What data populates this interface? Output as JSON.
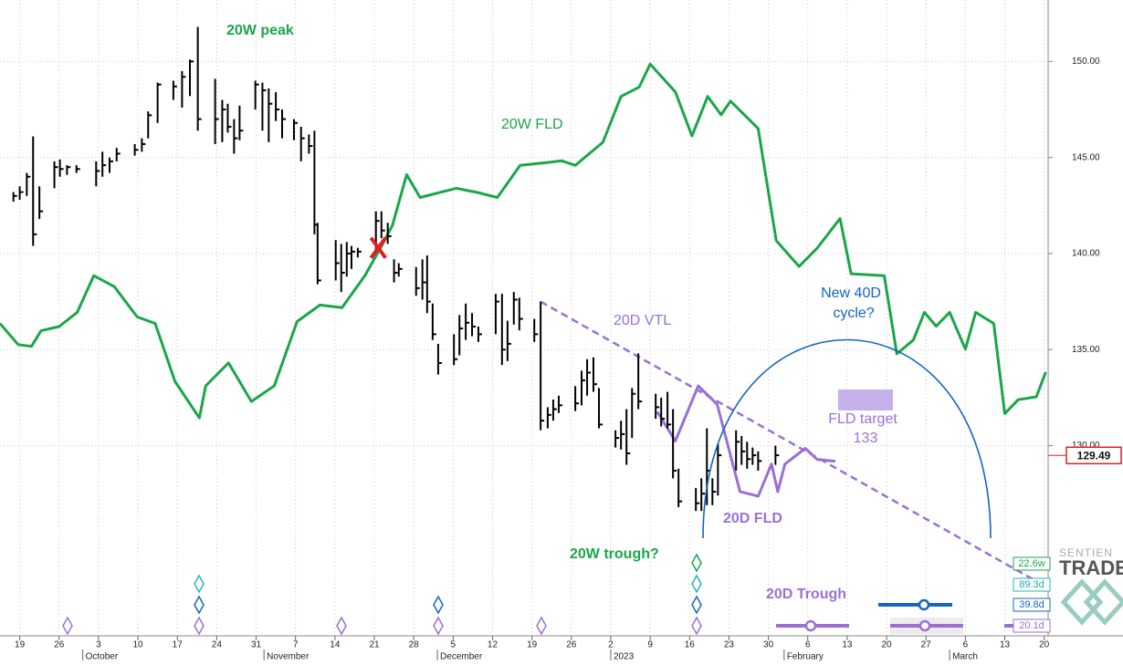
{
  "chart_data": {
    "type": "ohlc",
    "xlim": [
      -2.5,
      130.5
    ],
    "xticks": [
      {
        "value": 0,
        "label": "19"
      },
      {
        "value": 5,
        "label": "26"
      },
      {
        "value": 10,
        "label": "3"
      },
      {
        "value": 15,
        "label": "10"
      },
      {
        "value": 20,
        "label": "17"
      },
      {
        "value": 25,
        "label": "24"
      },
      {
        "value": 30,
        "label": "31"
      },
      {
        "value": 35,
        "label": "7"
      },
      {
        "value": 40,
        "label": "14"
      },
      {
        "value": 45,
        "label": "21"
      },
      {
        "value": 50,
        "label": "28"
      },
      {
        "value": 55,
        "label": "5"
      },
      {
        "value": 60,
        "label": "12"
      },
      {
        "value": 65,
        "label": "19"
      },
      {
        "value": 70,
        "label": "26"
      },
      {
        "value": 75,
        "label": "2"
      },
      {
        "value": 80,
        "label": "9"
      },
      {
        "value": 85,
        "label": "16"
      },
      {
        "value": 90,
        "label": "23"
      },
      {
        "value": 95,
        "label": "30"
      },
      {
        "value": 100,
        "label": "6"
      },
      {
        "value": 105,
        "label": "13"
      },
      {
        "value": 110,
        "label": "20"
      },
      {
        "value": 115,
        "label": "27"
      },
      {
        "value": 120,
        "label": "6"
      },
      {
        "value": 125,
        "label": "13"
      },
      {
        "value": 130,
        "label": "20"
      }
    ],
    "month_labels": [
      {
        "value": 8,
        "label": "October"
      },
      {
        "value": 31,
        "label": "November"
      },
      {
        "value": 53,
        "label": "December"
      },
      {
        "value": 75,
        "label": "2023"
      },
      {
        "value": 97,
        "label": "February"
      },
      {
        "value": 118,
        "label": "March"
      }
    ],
    "ylim": [
      120.1,
      153.2
    ],
    "yticks": [
      {
        "value": 130,
        "label": "130.00"
      },
      {
        "value": 135,
        "label": "135.00"
      },
      {
        "value": 140,
        "label": "140.00"
      },
      {
        "value": 145,
        "label": "145.00"
      },
      {
        "value": 150,
        "label": "150.00"
      }
    ],
    "grid": true,
    "bars": {
      "color": "#000000",
      "x": [
        -0.8,
        0,
        0.9,
        1.7,
        2.5,
        4.4,
        5.1,
        6,
        7.2,
        9.7,
        10.5,
        11.4,
        12.3,
        14.6,
        15.5,
        16.3,
        17.5,
        19.5,
        20.6,
        21.6,
        22.6,
        24.8,
        25.7,
        26.4,
        27.2,
        27.9,
        29.9,
        30.8,
        31.6,
        32.5,
        33.3,
        34.8,
        35.7,
        36.7,
        37.4,
        37.8,
        40.1,
        40.8,
        41.5,
        42.1,
        42.9,
        45.2,
        45.9,
        46.7,
        47.5,
        48.1,
        50.3,
        51.1,
        51.7,
        52.4,
        53.1,
        55.1,
        55.8,
        56.6,
        57.4,
        58.2,
        60.4,
        61.2,
        61.9,
        62.7,
        63.4,
        65.3,
        66.1,
        67,
        67.7,
        68.4,
        70.5,
        71.3,
        72,
        72.8,
        73.5,
        75.6,
        76.3,
        77,
        77.7,
        78.5,
        80.7,
        81.4,
        82.2,
        82.9,
        83.6,
        85.8,
        86.5,
        87.2,
        87.9,
        88.6,
        90.9,
        91.6,
        92.3,
        93,
        93.7,
        95.9
      ],
      "high": [
        143.2,
        143.5,
        144.2,
        146.1,
        143.5,
        144.8,
        144.9,
        144.6,
        144.6,
        144.8,
        145.3,
        145.0,
        145.5,
        145.7,
        146.0,
        147.4,
        148.9,
        149.0,
        149.5,
        150.1,
        151.8,
        149.1,
        148.0,
        147.8,
        147.0,
        147.7,
        149.0,
        148.9,
        148.6,
        148.4,
        147.5,
        147.0,
        146.6,
        146.2,
        146.4,
        141.6,
        140.7,
        140.5,
        140.6,
        140.4,
        140.3,
        142.2,
        142.2,
        141.6,
        139.7,
        139.5,
        139.3,
        139.7,
        139.9,
        137.4,
        135.3,
        135.8,
        136.8,
        137.4,
        136.9,
        136.2,
        137.9,
        137.9,
        136.5,
        138.0,
        137.7,
        136.6,
        137.5,
        132.0,
        132.4,
        132.6,
        133.1,
        133.9,
        134.5,
        134.6,
        133.0,
        130.8,
        131.3,
        131.9,
        133.0,
        134.8,
        132.7,
        132.5,
        132.8,
        131.9,
        128.8,
        127.8,
        128.3,
        130.9,
        128.3,
        130.1,
        130.8,
        130.5,
        130.2,
        129.9,
        129.7,
        130.0
      ],
      "low": [
        142.7,
        142.8,
        143.0,
        140.4,
        141.8,
        143.4,
        144.0,
        144.1,
        144.2,
        143.5,
        144.0,
        144.2,
        144.8,
        145.1,
        145.3,
        146.0,
        146.8,
        148.0,
        147.6,
        148.2,
        146.4,
        145.7,
        145.8,
        146.3,
        145.2,
        145.9,
        147.5,
        146.4,
        145.8,
        146.9,
        146.0,
        145.9,
        144.8,
        145.2,
        141.0,
        138.4,
        138.6,
        138.0,
        138.8,
        139.2,
        139.8,
        140.2,
        140.8,
        140.5,
        138.5,
        138.8,
        137.8,
        137.6,
        136.9,
        135.5,
        133.7,
        134.2,
        134.7,
        135.5,
        135.7,
        135.4,
        135.8,
        134.2,
        134.4,
        136.3,
        136.0,
        135.4,
        130.8,
        130.9,
        131.3,
        131.7,
        131.8,
        132.1,
        132.6,
        132.8,
        130.9,
        129.9,
        129.8,
        129.0,
        130.4,
        131.9,
        131.4,
        131.0,
        130.9,
        128.3,
        126.8,
        126.6,
        126.6,
        126.9,
        126.9,
        127.4,
        128.7,
        129.0,
        128.8,
        129.0,
        128.7,
        129.0
      ],
      "close": [
        143.0,
        143.2,
        144.0,
        141.0,
        142.2,
        144.5,
        144.4,
        144.5,
        144.4,
        144.3,
        144.6,
        144.8,
        145.2,
        145.4,
        145.7,
        147.2,
        148.8,
        148.7,
        149.2,
        150.0,
        147.0,
        147.0,
        147.5,
        146.6,
        146.0,
        146.4,
        148.8,
        148.5,
        147.8,
        147.5,
        147.0,
        146.8,
        146.0,
        145.6,
        141.5,
        138.6,
        139.5,
        139.0,
        140.0,
        140.1,
        140.1,
        141.7,
        141.2,
        140.9,
        139.0,
        139.2,
        138.2,
        138.5,
        137.5,
        135.8,
        134.3,
        134.5,
        136.1,
        136.4,
        136.2,
        135.8,
        137.5,
        135.0,
        135.3,
        137.6,
        136.6,
        135.8,
        131.3,
        131.6,
        131.9,
        132.1,
        132.2,
        133.4,
        133.8,
        133.2,
        131.1,
        130.4,
        130.6,
        129.6,
        132.7,
        132.3,
        132.0,
        131.4,
        131.1,
        128.7,
        127.1,
        127.0,
        127.5,
        128.7,
        127.6,
        129.5,
        130.2,
        129.7,
        129.3,
        129.5,
        129.2,
        129.5
      ]
    },
    "series": [
      {
        "name": "20W FLD",
        "color": "#1aa64a",
        "x": [
          -2.5,
          -0.2,
          1.5,
          2.7,
          5.0,
          7.3,
          9.4,
          12.0,
          14.9,
          17.2,
          19.7,
          22.8,
          23.6,
          26.5,
          29.4,
          32.3,
          35.2,
          38.1,
          40.9,
          43.8,
          45.9,
          47.3,
          49.1,
          50.8,
          53.1,
          55.4,
          58.3,
          60.6,
          63.5,
          67.0,
          68.8,
          70.5,
          74.0,
          76.3,
          78.6,
          80.0,
          83.2,
          85.3,
          87.3,
          89.0,
          90.2,
          93.7,
          96.0,
          98.9,
          101.2,
          104.1,
          105.5,
          109.7,
          111.3,
          113.4,
          114.8,
          116.3,
          118.0,
          120.0,
          121.3,
          123.6,
          125.0,
          126.7,
          129.0,
          130.2
        ],
        "values": [
          136.36,
          135.26,
          135.17,
          135.98,
          136.2,
          136.94,
          138.85,
          138.28,
          136.7,
          136.36,
          133.35,
          131.44,
          133.11,
          134.31,
          132.3,
          133.11,
          136.46,
          137.32,
          137.18,
          138.85,
          140.38,
          141.48,
          144.11,
          142.92,
          143.16,
          143.4,
          143.16,
          142.92,
          144.59,
          144.74,
          144.83,
          144.59,
          145.79,
          148.18,
          148.66,
          149.86,
          148.42,
          146.12,
          148.18,
          147.22,
          147.94,
          146.51,
          140.67,
          139.33,
          140.29,
          141.82,
          138.95,
          138.85,
          134.78,
          135.5,
          136.94,
          136.22,
          136.94,
          135.02,
          136.94,
          136.36,
          131.67,
          132.39,
          132.54,
          133.83
        ]
      },
      {
        "name": "20D FLD",
        "color": "#9b6fd6",
        "x": [
          80.9,
          83.2,
          86.1,
          88.5,
          91.4,
          93.7,
          95.4,
          96.2,
          97.1,
          99.7,
          101.2,
          103.5
        ],
        "values": [
          131.77,
          130.24,
          133.11,
          132.15,
          127.61,
          127.37,
          129.04,
          127.61,
          129.04,
          129.86,
          129.28,
          129.19
        ]
      }
    ],
    "vtl": {
      "name": "20D VTL",
      "color": "#9b6fd6",
      "x": [
        66.1,
        130.5
      ],
      "values": [
        137.5,
        122.6
      ]
    },
    "cross": {
      "x": 45.5,
      "value": 140.3,
      "color": "#e02020"
    },
    "last_price": 129.49,
    "annotations": {
      "peak": "20W peak",
      "trough": "20W trough?",
      "new_cycle": [
        "New 40D",
        "cycle?"
      ],
      "fld_target": "FLD target",
      "fld_target_value": 133,
      "trough_20d": "20D Trough"
    },
    "cycle_labels": [
      "22.6w",
      "89.3d",
      "39.8d",
      "20.1d"
    ],
    "logo": [
      "SENTIEN",
      "TRADE"
    ]
  }
}
